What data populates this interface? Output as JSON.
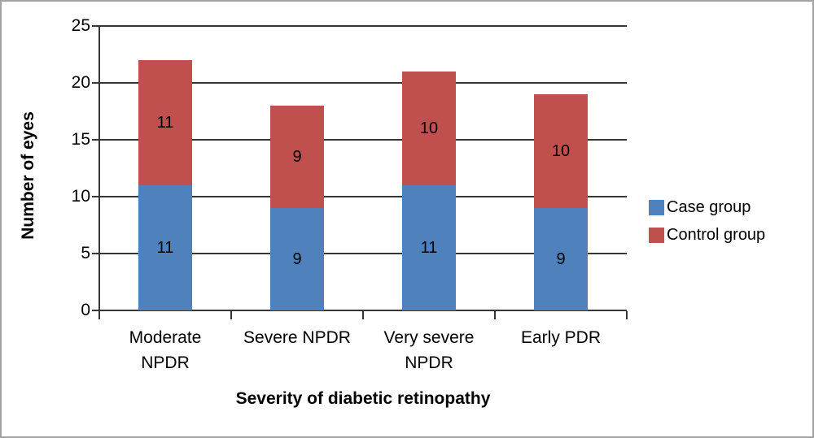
{
  "chart_data": {
    "type": "bar",
    "stacked": true,
    "title": "",
    "categories": [
      "Moderate NPDR",
      "Severe NPDR",
      "Very severe NPDR",
      "Early PDR"
    ],
    "category_display": [
      "Moderate\nNPDR",
      "Severe NPDR",
      "Very severe\nNPDR",
      "Early PDR"
    ],
    "series": [
      {
        "name": "Case group",
        "color": "#4F81BD",
        "values": [
          11,
          9,
          11,
          9
        ]
      },
      {
        "name": "Control group",
        "color": "#C0504D",
        "values": [
          11,
          9,
          10,
          10
        ]
      }
    ],
    "xlabel": "Severity of diabetic retinopathy",
    "ylabel": "Number of eyes",
    "ylim": [
      0,
      25
    ],
    "ytick_step": 5,
    "yticks": [
      "0",
      "5",
      "10",
      "15",
      "20",
      "25"
    ],
    "grid": true,
    "data_labels": true,
    "legend_position": "right",
    "colors": {
      "case_group": "#4F81BD",
      "control_group": "#C0504D",
      "axis": "#363636",
      "text": "#000000",
      "frame_border": "#a3a3a3",
      "background": "#ffffff"
    }
  }
}
